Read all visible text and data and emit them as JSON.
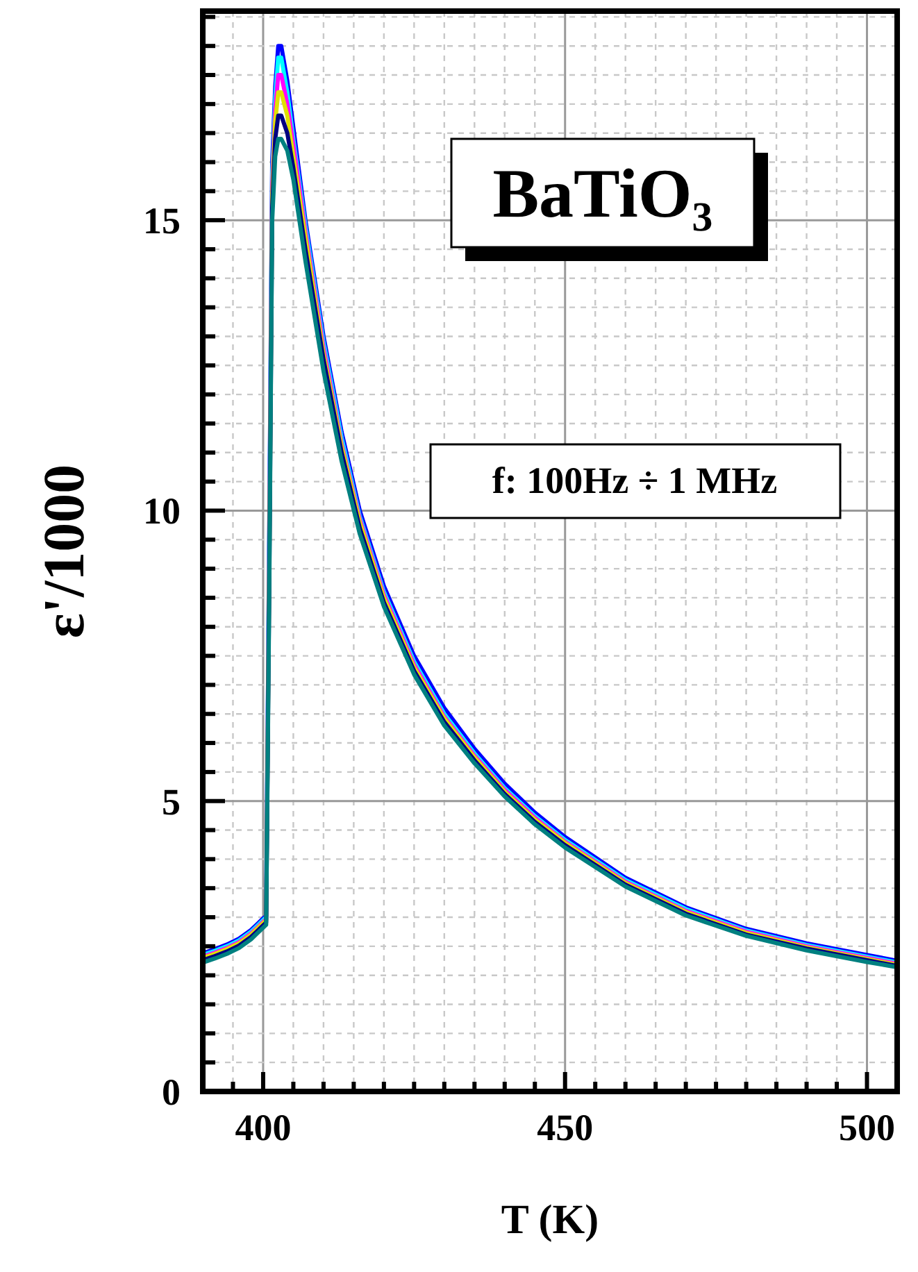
{
  "chart_data": {
    "type": "line",
    "xlabel": "T (K)",
    "ylabel": "ε'/1000",
    "annotations": [
      "BaTiO₃",
      "f: 100Hz ÷ 1 MHz"
    ],
    "x": [
      390,
      392,
      394,
      396,
      398,
      399,
      400,
      400.5,
      401,
      401.5,
      402,
      402.5,
      403,
      404,
      405,
      407,
      410,
      413,
      416,
      420,
      425,
      430,
      435,
      440,
      445,
      450,
      460,
      470,
      480,
      490,
      500,
      505
    ],
    "series": [
      {
        "color": "#0000ff",
        "values": [
          2.38,
          2.45,
          2.53,
          2.63,
          2.78,
          2.88,
          2.98,
          3.02,
          9.5,
          16,
          17.3,
          18.0,
          18.0,
          17.4,
          16.6,
          15.0,
          13.0,
          11.35,
          10.0,
          8.7,
          7.5,
          6.6,
          5.9,
          5.3,
          4.8,
          4.38,
          3.68,
          3.17,
          2.8,
          2.55,
          2.35,
          2.25
        ]
      },
      {
        "color": "#00ffff",
        "values": [
          2.35,
          2.42,
          2.5,
          2.6,
          2.75,
          2.85,
          2.95,
          3.0,
          9.2,
          15.8,
          17.1,
          17.8,
          17.8,
          17.2,
          16.4,
          14.9,
          12.9,
          11.25,
          9.9,
          8.6,
          7.4,
          6.5,
          5.82,
          5.22,
          4.74,
          4.33,
          3.64,
          3.14,
          2.77,
          2.52,
          2.32,
          2.22
        ]
      },
      {
        "color": "#ff00ff",
        "values": [
          2.32,
          2.39,
          2.47,
          2.57,
          2.72,
          2.82,
          2.92,
          2.97,
          9.0,
          15.6,
          16.9,
          17.5,
          17.5,
          17.0,
          16.3,
          14.8,
          12.8,
          11.15,
          9.85,
          8.55,
          7.35,
          6.45,
          5.78,
          5.19,
          4.71,
          4.3,
          3.61,
          3.11,
          2.75,
          2.5,
          2.3,
          2.2
        ]
      },
      {
        "color": "#e0e000",
        "values": [
          2.3,
          2.37,
          2.45,
          2.55,
          2.7,
          2.8,
          2.9,
          2.95,
          8.8,
          15.4,
          16.7,
          17.2,
          17.2,
          16.8,
          16.1,
          14.7,
          12.7,
          11.1,
          9.8,
          8.5,
          7.3,
          6.42,
          5.75,
          5.16,
          4.68,
          4.28,
          3.59,
          3.09,
          2.73,
          2.48,
          2.28,
          2.18
        ]
      },
      {
        "color": "#000080",
        "values": [
          2.26,
          2.33,
          2.41,
          2.51,
          2.66,
          2.76,
          2.86,
          2.91,
          8.6,
          15.2,
          16.4,
          16.8,
          16.8,
          16.5,
          15.9,
          14.5,
          12.6,
          11.0,
          9.7,
          8.42,
          7.24,
          6.36,
          5.7,
          5.12,
          4.64,
          4.24,
          3.56,
          3.06,
          2.7,
          2.46,
          2.26,
          2.16
        ]
      },
      {
        "color": "#008080",
        "values": [
          2.22,
          2.29,
          2.37,
          2.47,
          2.62,
          2.72,
          2.82,
          2.87,
          8.4,
          15.0,
          16.1,
          16.4,
          16.4,
          16.2,
          15.7,
          14.3,
          12.4,
          10.85,
          9.6,
          8.35,
          7.18,
          6.3,
          5.65,
          5.08,
          4.6,
          4.2,
          3.53,
          3.03,
          2.68,
          2.43,
          2.23,
          2.14
        ]
      }
    ],
    "xlim": [
      390,
      505
    ],
    "xticks": [
      {
        "value": 390,
        "label": null
      },
      {
        "value": 395,
        "label": null
      },
      400,
      {
        "value": 405,
        "label": null
      },
      {
        "value": 410,
        "label": null
      },
      {
        "value": 415,
        "label": null
      },
      {
        "value": 420,
        "label": null
      },
      {
        "value": 425,
        "label": null
      },
      {
        "value": 430,
        "label": null
      },
      {
        "value": 435,
        "label": null
      },
      {
        "value": 440,
        "label": null
      },
      {
        "value": 445,
        "label": null
      },
      450,
      {
        "value": 455,
        "label": null
      },
      {
        "value": 460,
        "label": null
      },
      {
        "value": 465,
        "label": null
      },
      {
        "value": 470,
        "label": null
      },
      {
        "value": 475,
        "label": null
      },
      {
        "value": 480,
        "label": null
      },
      {
        "value": 485,
        "label": null
      },
      {
        "value": 490,
        "label": null
      },
      {
        "value": 495,
        "label": null
      },
      500,
      {
        "value": 505,
        "label": null
      }
    ],
    "ylim": [
      0,
      18.6
    ],
    "yticks": [
      0,
      {
        "value": 0.5,
        "label": null
      },
      {
        "value": 1,
        "label": null
      },
      {
        "value": 1.5,
        "label": null
      },
      {
        "value": 2,
        "label": null
      },
      {
        "value": 2.5,
        "label": null
      },
      {
        "value": 3,
        "label": null
      },
      {
        "value": 3.5,
        "label": null
      },
      {
        "value": 4,
        "label": null
      },
      {
        "value": 4.5,
        "label": null
      },
      5,
      {
        "value": 5.5,
        "label": null
      },
      {
        "value": 6,
        "label": null
      },
      {
        "value": 6.5,
        "label": null
      },
      {
        "value": 7,
        "label": null
      },
      {
        "value": 7.5,
        "label": null
      },
      {
        "value": 8,
        "label": null
      },
      {
        "value": 8.5,
        "label": null
      },
      {
        "value": 9,
        "label": null
      },
      {
        "value": 9.5,
        "label": null
      },
      10,
      {
        "value": 10.5,
        "label": null
      },
      {
        "value": 11,
        "label": null
      },
      {
        "value": 11.5,
        "label": null
      },
      {
        "value": 12,
        "label": null
      },
      {
        "value": 12.5,
        "label": null
      },
      {
        "value": 13,
        "label": null
      },
      {
        "value": 13.5,
        "label": null
      },
      {
        "value": 14,
        "label": null
      },
      {
        "value": 14.5,
        "label": null
      },
      15,
      {
        "value": 15.5,
        "label": null
      },
      {
        "value": 16,
        "label": null
      },
      {
        "value": 16.5,
        "label": null
      },
      {
        "value": 17,
        "label": null
      },
      {
        "value": 17.5,
        "label": null
      },
      {
        "value": 18,
        "label": null
      },
      {
        "value": 18.5,
        "label": null
      }
    ],
    "grid": true,
    "marker": "none",
    "line_style": "solid"
  }
}
